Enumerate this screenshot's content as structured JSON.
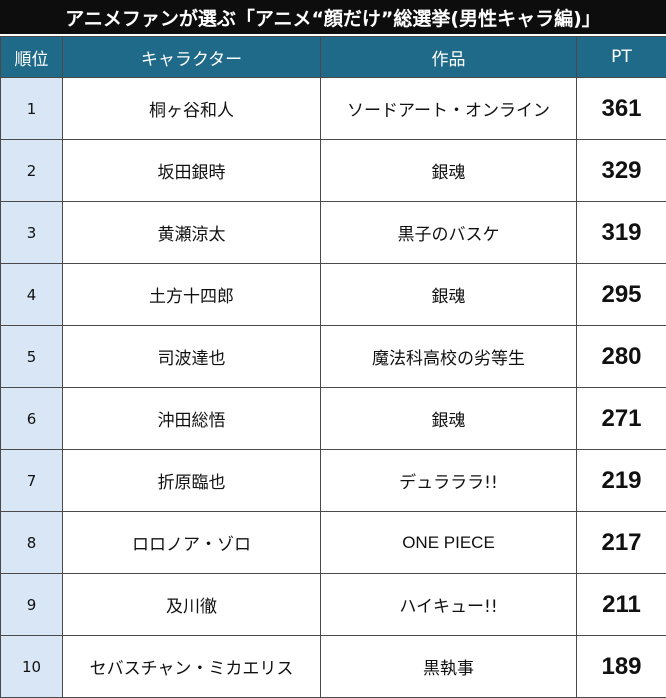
{
  "title": "アニメファンが選ぶ「アニメ“顔だけ”総選挙(男性キャラ編)」",
  "colors": {
    "title_bg": "#0d0d0d",
    "header_bg": "#1f6a88",
    "rank_cell_bg": "#d9e6f5",
    "border": "#4a4a4a"
  },
  "chart_data": {
    "type": "table",
    "title": "アニメファンが選ぶ「アニメ“顔だけ”総選挙(男性キャラ編)」",
    "columns": [
      "順位",
      "キャラクター",
      "作品",
      "PT"
    ],
    "rows": [
      {
        "rank": "1",
        "character": "桐ヶ谷和人",
        "work": "ソードアート・オンライン",
        "pt": 361
      },
      {
        "rank": "2",
        "character": "坂田銀時",
        "work": "銀魂",
        "pt": 329
      },
      {
        "rank": "3",
        "character": "黄瀬涼太",
        "work": "黒子のバスケ",
        "pt": 319
      },
      {
        "rank": "4",
        "character": "土方十四郎",
        "work": "銀魂",
        "pt": 295
      },
      {
        "rank": "5",
        "character": "司波達也",
        "work": "魔法科高校の劣等生",
        "pt": 280
      },
      {
        "rank": "6",
        "character": "沖田総悟",
        "work": "銀魂",
        "pt": 271
      },
      {
        "rank": "7",
        "character": "折原臨也",
        "work": "デュラララ!!",
        "pt": 219
      },
      {
        "rank": "8",
        "character": "ロロノア・ゾロ",
        "work": "ONE PIECE",
        "pt": 217
      },
      {
        "rank": "9",
        "character": "及川徹",
        "work": "ハイキュー!!",
        "pt": 211
      },
      {
        "rank": "10",
        "character": "セバスチャン・ミカエリス",
        "work": "黒執事",
        "pt": 189
      }
    ]
  }
}
